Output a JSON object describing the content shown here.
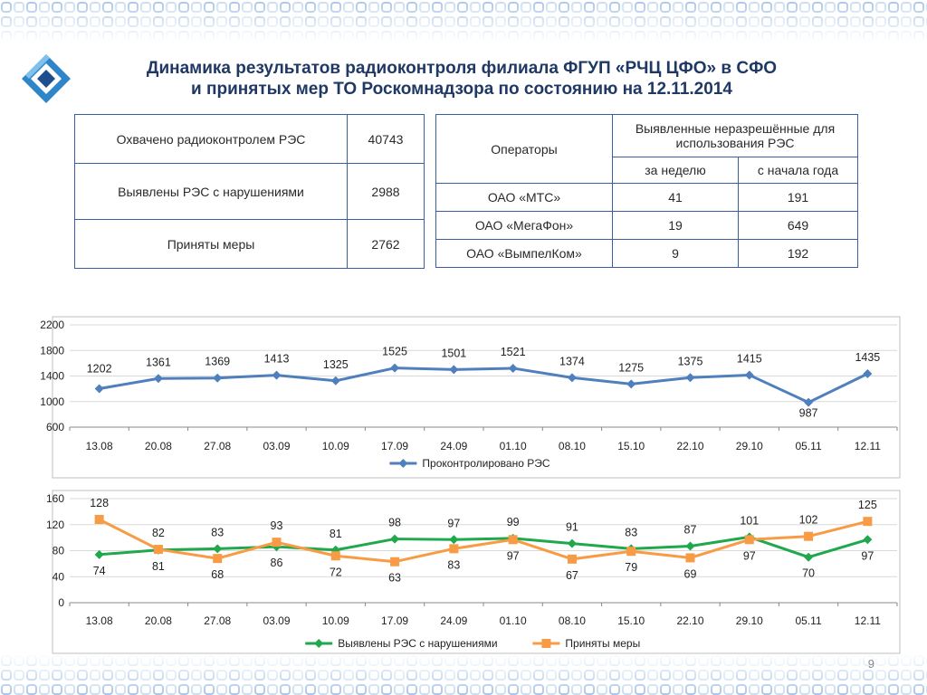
{
  "title": {
    "line1": "Динамика результатов радиоконтроля филиала ФГУП «РЧЦ ЦФО» в СФО",
    "line2": "и принятых мер ТО Роскомнадзора по состоянию на 12.11.2014"
  },
  "summary_table": {
    "rows": [
      {
        "label": "Охвачено радиоконтролем РЭС",
        "value": "40743"
      },
      {
        "label": "Выявлены РЭС с нарушениями",
        "value": "2988"
      },
      {
        "label": "Приняты меры",
        "value": "2762"
      }
    ]
  },
  "operators_table": {
    "col_operators": "Операторы",
    "col_group": "Выявленные неразрешённые для использования РЭС",
    "col_week": "за неделю",
    "col_year": "с начала года",
    "rows": [
      {
        "name": "ОАО «МТС»",
        "week": "41",
        "year": "191"
      },
      {
        "name": "ОАО «МегаФон»",
        "week": "19",
        "year": "649"
      },
      {
        "name": "ОАО «ВымпелКом»",
        "week": "9",
        "year": "192"
      }
    ]
  },
  "colors": {
    "blue": "#4f7fbd",
    "green": "#1fa84c",
    "orange": "#f79b45",
    "table_border": "#3a5ea0"
  },
  "chart_data": [
    {
      "type": "line",
      "categories": [
        "13.08",
        "20.08",
        "27.08",
        "03.09",
        "10.09",
        "17.09",
        "24.09",
        "01.10",
        "08.10",
        "15.10",
        "22.10",
        "29.10",
        "05.11",
        "12.11"
      ],
      "series": [
        {
          "name": "Проконтролировано РЭС",
          "values": [
            1202,
            1361,
            1369,
            1413,
            1325,
            1525,
            1501,
            1521,
            1374,
            1275,
            1375,
            1415,
            987,
            1435
          ]
        }
      ],
      "ylim": [
        600,
        2200
      ],
      "yticks": [
        600,
        1000,
        1400,
        1800,
        2200
      ],
      "legend": "bottom"
    },
    {
      "type": "line",
      "categories": [
        "13.08",
        "20.08",
        "27.08",
        "03.09",
        "10.09",
        "17.09",
        "24.09",
        "01.10",
        "08.10",
        "15.10",
        "22.10",
        "29.10",
        "05.11",
        "12.11"
      ],
      "series": [
        {
          "name": "Выявлены РЭС с нарушениями",
          "values": [
            74,
            81,
            83,
            86,
            81,
            98,
            97,
            99,
            91,
            83,
            87,
            101,
            70,
            97
          ]
        },
        {
          "name": "Приняты меры",
          "values": [
            128,
            82,
            68,
            93,
            72,
            63,
            83,
            97,
            67,
            79,
            69,
            97,
            102,
            125
          ]
        }
      ],
      "ylim": [
        0,
        160
      ],
      "yticks": [
        0,
        40,
        80,
        120,
        160
      ],
      "legend": "bottom"
    }
  ],
  "page_number": "9"
}
